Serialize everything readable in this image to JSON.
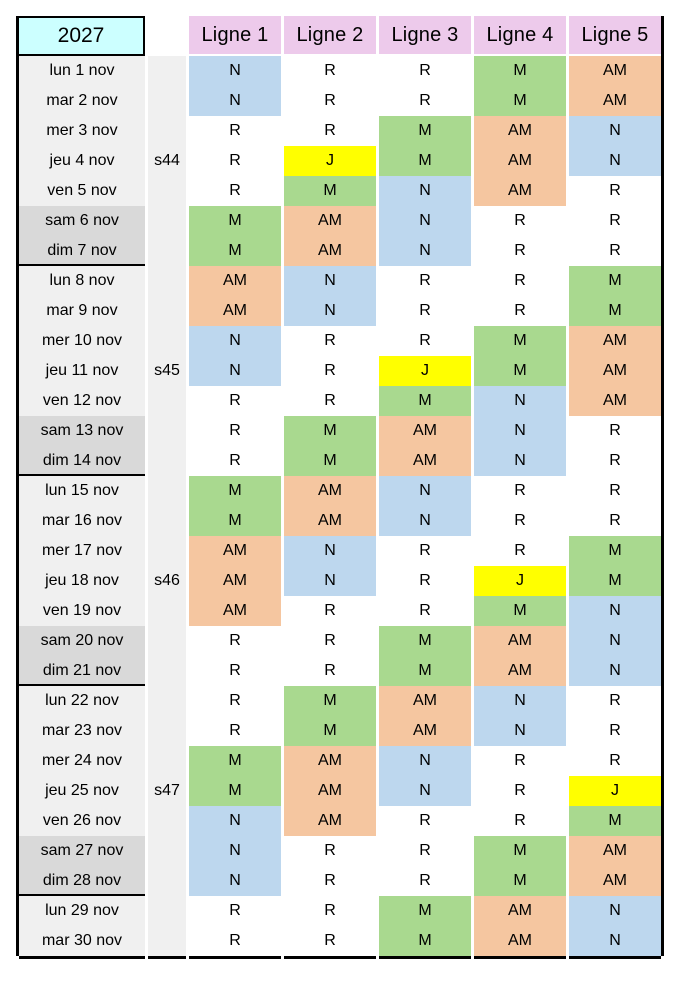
{
  "year": "2027",
  "columns": [
    "Ligne 1",
    "Ligne 2",
    "Ligne 3",
    "Ligne 4",
    "Ligne 5"
  ],
  "cell_colors": {
    "N": "#bdd7ee",
    "M": "#a9d98f",
    "AM": "#f5c6a0",
    "J": "#ffff00",
    "R": "#ffffff"
  },
  "ui_colors": {
    "year_bg": "#ccffff",
    "header_bg": "#edcaeb",
    "weekday_bg": "#f0f0f0",
    "weekend_bg": "#d9d9d9",
    "border": "#000000"
  },
  "rows": [
    {
      "date": "lun 1 nov",
      "week": "",
      "weekend": false,
      "sep": false,
      "shifts": [
        "N",
        "R",
        "R",
        "M",
        "AM"
      ]
    },
    {
      "date": "mar 2 nov",
      "week": "",
      "weekend": false,
      "sep": false,
      "shifts": [
        "N",
        "R",
        "R",
        "M",
        "AM"
      ]
    },
    {
      "date": "mer 3 nov",
      "week": "",
      "weekend": false,
      "sep": false,
      "shifts": [
        "R",
        "R",
        "M",
        "AM",
        "N"
      ]
    },
    {
      "date": "jeu 4 nov",
      "week": "s44",
      "weekend": false,
      "sep": false,
      "shifts": [
        "R",
        "J",
        "M",
        "AM",
        "N"
      ]
    },
    {
      "date": "ven 5 nov",
      "week": "",
      "weekend": false,
      "sep": false,
      "shifts": [
        "R",
        "M",
        "N",
        "AM",
        "R"
      ]
    },
    {
      "date": "sam 6 nov",
      "week": "",
      "weekend": true,
      "sep": false,
      "shifts": [
        "M",
        "AM",
        "N",
        "R",
        "R"
      ]
    },
    {
      "date": "dim 7 nov",
      "week": "",
      "weekend": true,
      "sep": false,
      "shifts": [
        "M",
        "AM",
        "N",
        "R",
        "R"
      ]
    },
    {
      "date": "lun 8 nov",
      "week": "",
      "weekend": false,
      "sep": true,
      "shifts": [
        "AM",
        "N",
        "R",
        "R",
        "M"
      ]
    },
    {
      "date": "mar 9 nov",
      "week": "",
      "weekend": false,
      "sep": false,
      "shifts": [
        "AM",
        "N",
        "R",
        "R",
        "M"
      ]
    },
    {
      "date": "mer 10 nov",
      "week": "",
      "weekend": false,
      "sep": false,
      "shifts": [
        "N",
        "R",
        "R",
        "M",
        "AM"
      ]
    },
    {
      "date": "jeu 11 nov",
      "week": "s45",
      "weekend": false,
      "sep": false,
      "shifts": [
        "N",
        "R",
        "J",
        "M",
        "AM"
      ]
    },
    {
      "date": "ven 12 nov",
      "week": "",
      "weekend": false,
      "sep": false,
      "shifts": [
        "R",
        "R",
        "M",
        "N",
        "AM"
      ]
    },
    {
      "date": "sam 13 nov",
      "week": "",
      "weekend": true,
      "sep": false,
      "shifts": [
        "R",
        "M",
        "AM",
        "N",
        "R"
      ]
    },
    {
      "date": "dim 14 nov",
      "week": "",
      "weekend": true,
      "sep": false,
      "shifts": [
        "R",
        "M",
        "AM",
        "N",
        "R"
      ]
    },
    {
      "date": "lun 15 nov",
      "week": "",
      "weekend": false,
      "sep": true,
      "shifts": [
        "M",
        "AM",
        "N",
        "R",
        "R"
      ]
    },
    {
      "date": "mar 16 nov",
      "week": "",
      "weekend": false,
      "sep": false,
      "shifts": [
        "M",
        "AM",
        "N",
        "R",
        "R"
      ]
    },
    {
      "date": "mer 17 nov",
      "week": "",
      "weekend": false,
      "sep": false,
      "shifts": [
        "AM",
        "N",
        "R",
        "R",
        "M"
      ]
    },
    {
      "date": "jeu 18 nov",
      "week": "s46",
      "weekend": false,
      "sep": false,
      "shifts": [
        "AM",
        "N",
        "R",
        "J",
        "M"
      ]
    },
    {
      "date": "ven 19 nov",
      "week": "",
      "weekend": false,
      "sep": false,
      "shifts": [
        "AM",
        "R",
        "R",
        "M",
        "N"
      ]
    },
    {
      "date": "sam 20 nov",
      "week": "",
      "weekend": true,
      "sep": false,
      "shifts": [
        "R",
        "R",
        "M",
        "AM",
        "N"
      ]
    },
    {
      "date": "dim 21 nov",
      "week": "",
      "weekend": true,
      "sep": false,
      "shifts": [
        "R",
        "R",
        "M",
        "AM",
        "N"
      ]
    },
    {
      "date": "lun 22 nov",
      "week": "",
      "weekend": false,
      "sep": true,
      "shifts": [
        "R",
        "M",
        "AM",
        "N",
        "R"
      ]
    },
    {
      "date": "mar 23 nov",
      "week": "",
      "weekend": false,
      "sep": false,
      "shifts": [
        "R",
        "M",
        "AM",
        "N",
        "R"
      ]
    },
    {
      "date": "mer 24 nov",
      "week": "",
      "weekend": false,
      "sep": false,
      "shifts": [
        "M",
        "AM",
        "N",
        "R",
        "R"
      ]
    },
    {
      "date": "jeu 25 nov",
      "week": "s47",
      "weekend": false,
      "sep": false,
      "shifts": [
        "M",
        "AM",
        "N",
        "R",
        "J"
      ]
    },
    {
      "date": "ven 26 nov",
      "week": "",
      "weekend": false,
      "sep": false,
      "shifts": [
        "N",
        "AM",
        "R",
        "R",
        "M"
      ]
    },
    {
      "date": "sam 27 nov",
      "week": "",
      "weekend": true,
      "sep": false,
      "shifts": [
        "N",
        "R",
        "R",
        "M",
        "AM"
      ]
    },
    {
      "date": "dim 28 nov",
      "week": "",
      "weekend": true,
      "sep": false,
      "shifts": [
        "N",
        "R",
        "R",
        "M",
        "AM"
      ]
    },
    {
      "date": "lun 29 nov",
      "week": "",
      "weekend": false,
      "sep": true,
      "shifts": [
        "R",
        "R",
        "M",
        "AM",
        "N"
      ]
    },
    {
      "date": "mar 30 nov",
      "week": "",
      "weekend": false,
      "sep": false,
      "shifts": [
        "R",
        "R",
        "M",
        "AM",
        "N"
      ]
    }
  ]
}
